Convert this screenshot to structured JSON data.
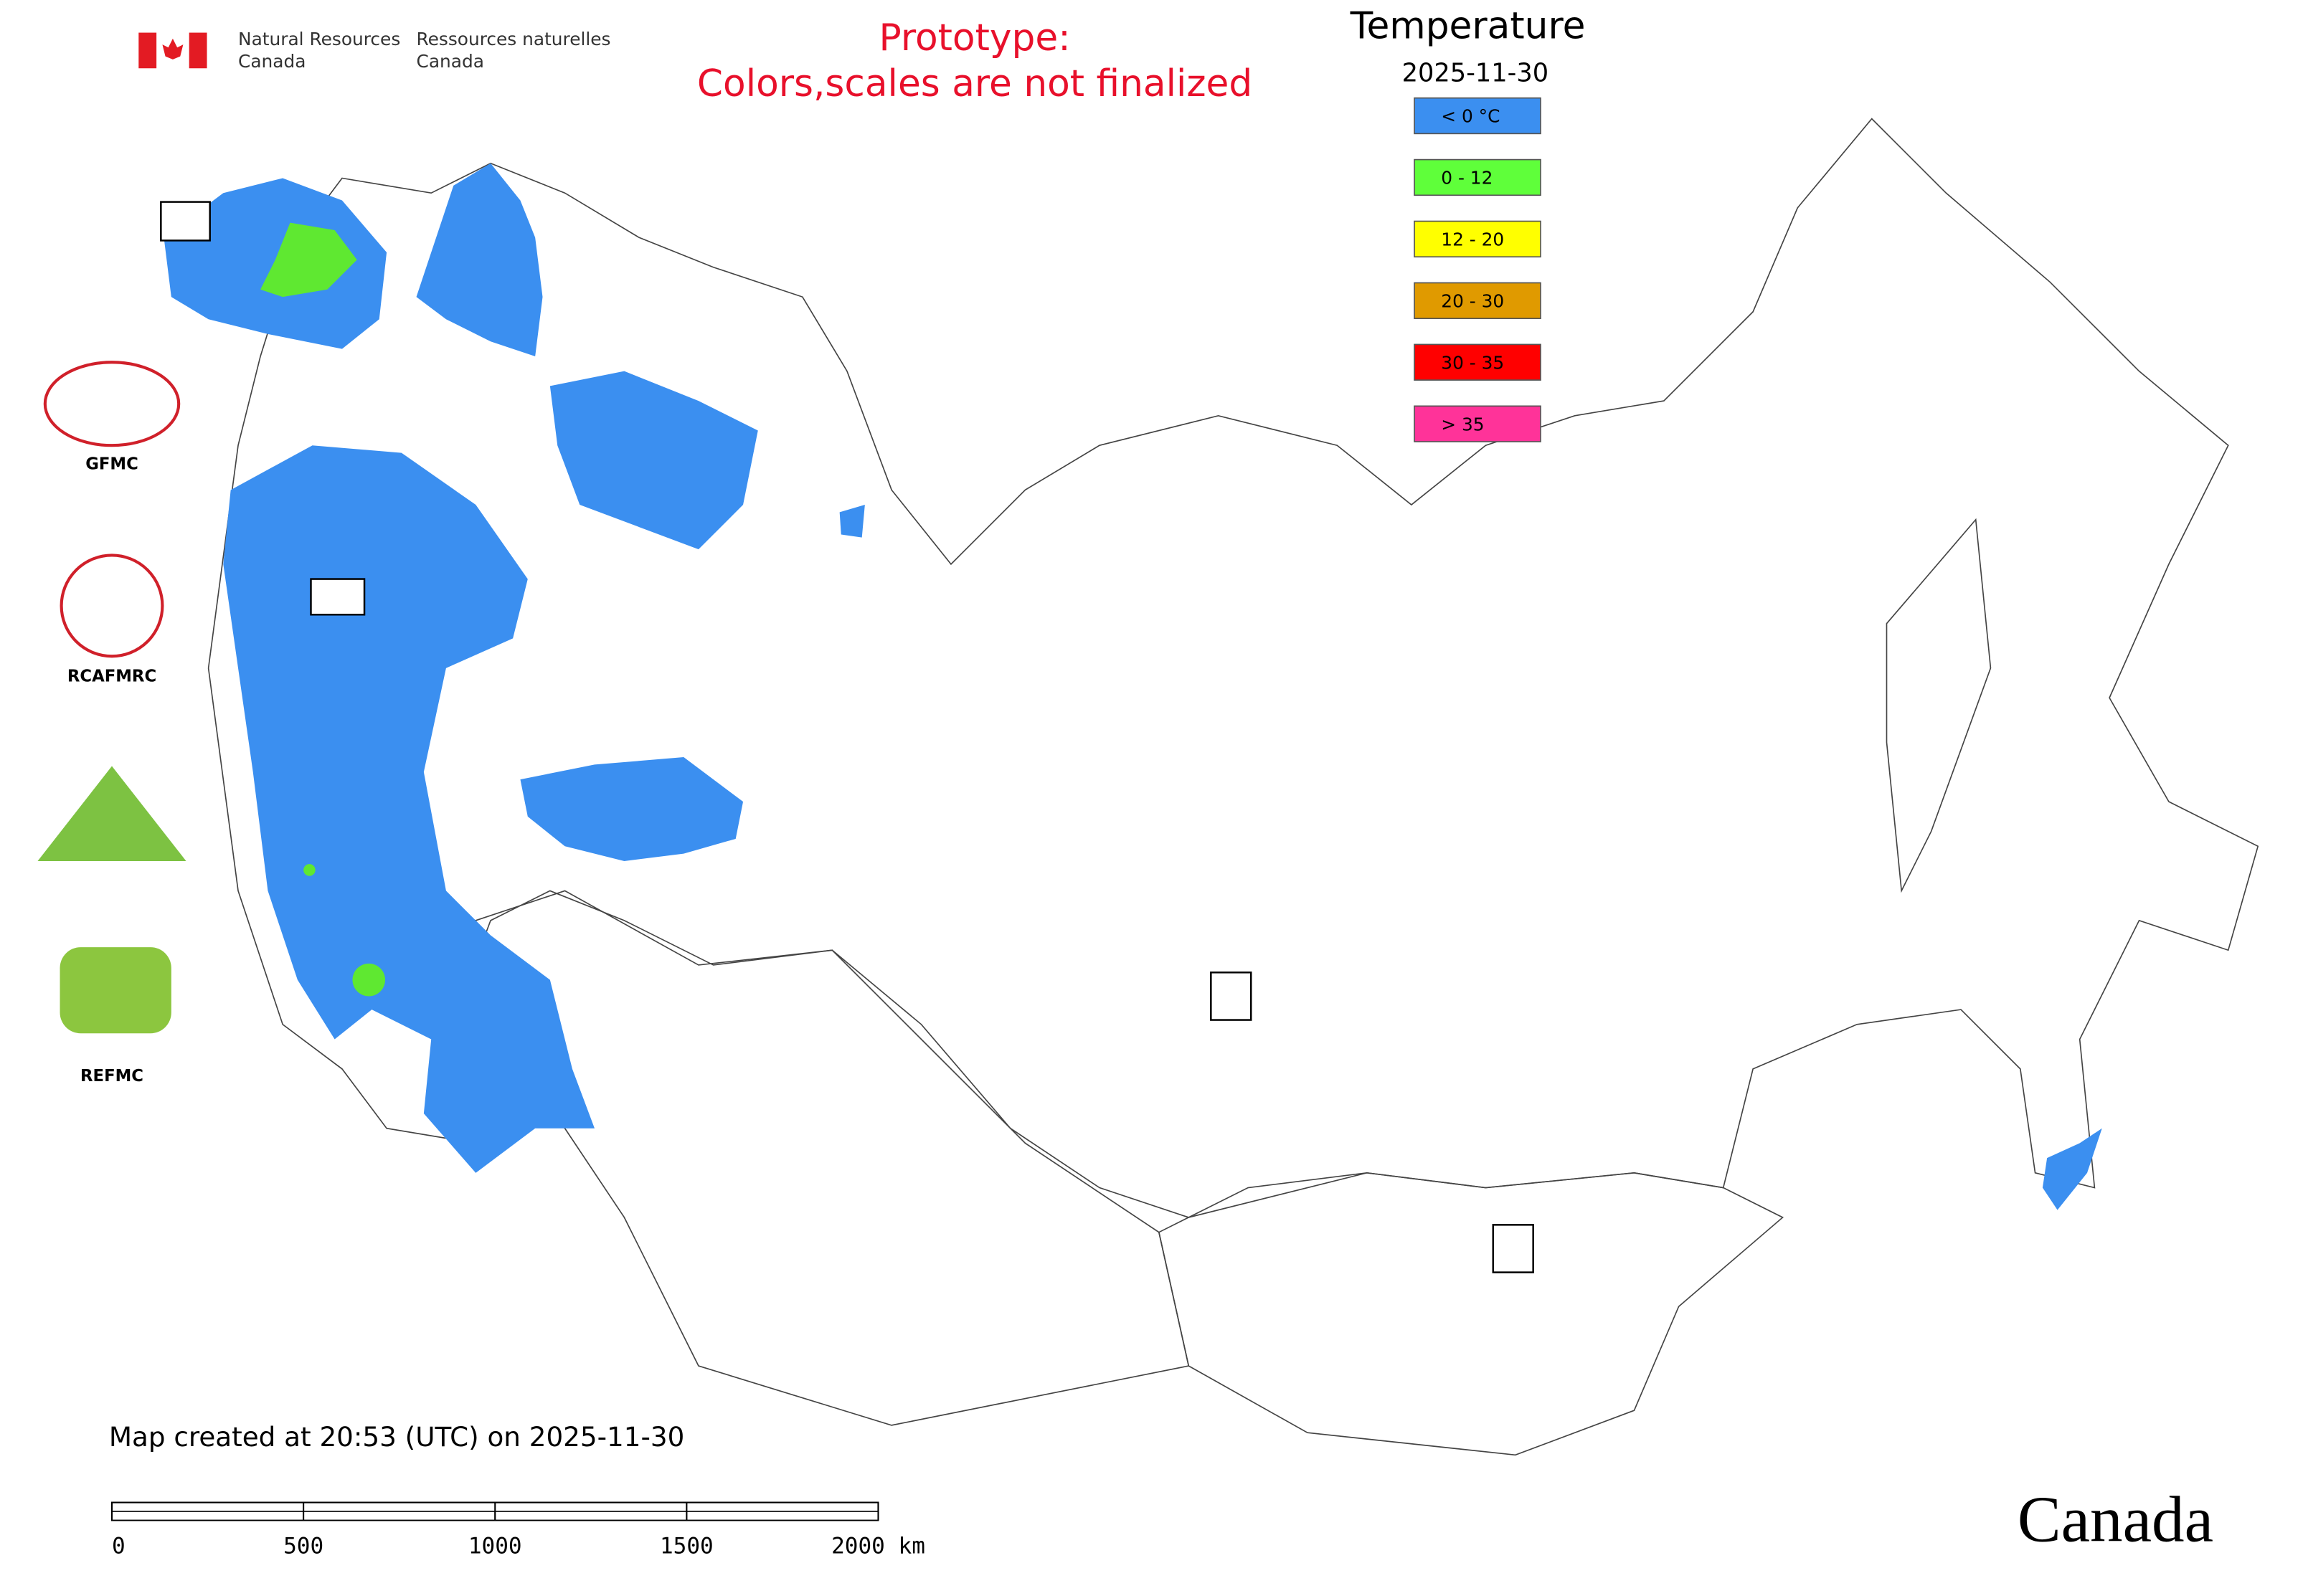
{
  "header": {
    "org_en": [
      "Natural Resources",
      "Canada"
    ],
    "org_fr": [
      "Ressources naturelles",
      "Canada"
    ],
    "prototype": [
      "Prototype:",
      "Colors,scales are not finalized"
    ]
  },
  "legend": {
    "title": "Temperature",
    "date": "2025-11-30",
    "items": [
      {
        "label": "< 0 °C",
        "color": "#3b8ff0"
      },
      {
        "label": "0 - 12",
        "color": "#5fff3a"
      },
      {
        "label": "12 - 20",
        "color": "#ffff00"
      },
      {
        "label": "20 - 30",
        "color": "#e09a00"
      },
      {
        "label": "30 - 35",
        "color": "#ff0000"
      },
      {
        "label": "> 35",
        "color": "#ff3399"
      }
    ]
  },
  "logos": [
    "GFMC",
    "RCAFMRC",
    "REFMC"
  ],
  "footer": {
    "created": "Map created at 20:53 (UTC) on 2025-11-30",
    "scale_bar": {
      "range": [
        0,
        2000
      ],
      "ticks": [
        0,
        500,
        1000,
        1500,
        {
          "value": 2000,
          "label": "2000 km"
        }
      ]
    }
  },
  "wordmark": "Canada"
}
